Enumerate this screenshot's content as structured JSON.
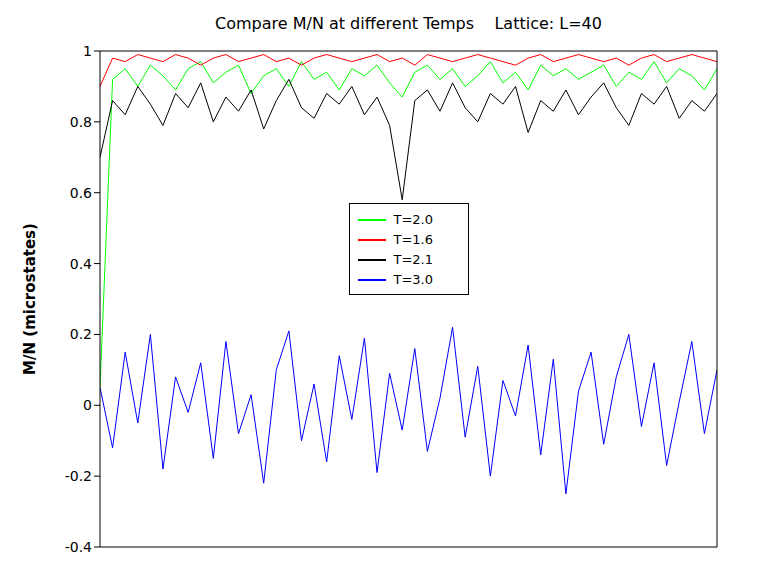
{
  "chart_data": {
    "type": "line",
    "title": "Compare M/N at different Temps    Lattice: L=40",
    "y_label": "M/N (microstates)",
    "x": [
      0,
      1,
      2,
      3,
      4,
      5,
      6,
      7,
      8,
      9,
      10,
      11,
      12,
      13,
      14,
      15,
      16,
      17,
      18,
      19,
      20,
      21,
      22,
      23,
      24,
      25,
      26,
      27,
      28,
      29,
      30,
      31,
      32,
      33,
      34,
      35,
      36,
      37,
      38,
      39,
      40,
      41,
      42,
      43,
      44,
      45,
      46,
      47,
      48,
      49
    ],
    "xlim": [
      0,
      49
    ],
    "ylim": [
      -0.4,
      1
    ],
    "yticks": [
      -0.4,
      -0.2,
      0,
      0.2,
      0.4,
      0.6,
      0.8,
      1
    ],
    "tick_labels": "y",
    "legend": "center",
    "series": [
      {
        "name": "T=2.0",
        "color": "#00ff00",
        "values": [
          0.05,
          0.92,
          0.95,
          0.9,
          0.96,
          0.93,
          0.89,
          0.95,
          0.97,
          0.91,
          0.94,
          0.96,
          0.88,
          0.93,
          0.95,
          0.9,
          0.97,
          0.92,
          0.94,
          0.89,
          0.95,
          0.93,
          0.96,
          0.91,
          0.87,
          0.94,
          0.96,
          0.92,
          0.95,
          0.9,
          0.93,
          0.97,
          0.91,
          0.94,
          0.89,
          0.96,
          0.93,
          0.95,
          0.92,
          0.94,
          0.96,
          0.9,
          0.94,
          0.92,
          0.97,
          0.91,
          0.95,
          0.93,
          0.89,
          0.95
        ]
      },
      {
        "name": "T=1.6",
        "color": "#ff0000",
        "values": [
          0.9,
          0.98,
          0.97,
          0.99,
          0.98,
          0.97,
          0.99,
          0.98,
          0.96,
          0.98,
          0.99,
          0.97,
          0.98,
          0.99,
          0.97,
          0.98,
          0.96,
          0.98,
          0.99,
          0.98,
          0.97,
          0.98,
          0.99,
          0.97,
          0.98,
          0.96,
          0.99,
          0.98,
          0.97,
          0.98,
          0.99,
          0.98,
          0.97,
          0.96,
          0.98,
          0.99,
          0.97,
          0.98,
          0.99,
          0.98,
          0.97,
          0.98,
          0.96,
          0.98,
          0.99,
          0.97,
          0.98,
          0.99,
          0.98,
          0.97
        ]
      },
      {
        "name": "T=2.1",
        "color": "#000000",
        "values": [
          0.7,
          0.86,
          0.82,
          0.9,
          0.85,
          0.79,
          0.88,
          0.84,
          0.91,
          0.8,
          0.87,
          0.83,
          0.89,
          0.78,
          0.86,
          0.92,
          0.84,
          0.81,
          0.88,
          0.85,
          0.9,
          0.82,
          0.87,
          0.79,
          0.58,
          0.86,
          0.89,
          0.83,
          0.91,
          0.84,
          0.8,
          0.88,
          0.85,
          0.9,
          0.77,
          0.86,
          0.83,
          0.89,
          0.82,
          0.87,
          0.91,
          0.84,
          0.79,
          0.88,
          0.85,
          0.9,
          0.81,
          0.86,
          0.83,
          0.88
        ]
      },
      {
        "name": "T=3.0",
        "color": "#0000ff",
        "values": [
          0.05,
          -0.12,
          0.15,
          -0.05,
          0.2,
          -0.18,
          0.08,
          -0.02,
          0.12,
          -0.15,
          0.18,
          -0.08,
          0.03,
          -0.22,
          0.1,
          0.21,
          -0.1,
          0.06,
          -0.16,
          0.14,
          -0.04,
          0.19,
          -0.19,
          0.09,
          -0.07,
          0.16,
          -0.13,
          0.02,
          0.22,
          -0.09,
          0.11,
          -0.2,
          0.07,
          -0.03,
          0.17,
          -0.14,
          0.13,
          -0.25,
          0.04,
          0.15,
          -0.11,
          0.08,
          0.2,
          -0.06,
          0.12,
          -0.17,
          0.01,
          0.18,
          -0.08,
          0.1
        ]
      }
    ]
  }
}
